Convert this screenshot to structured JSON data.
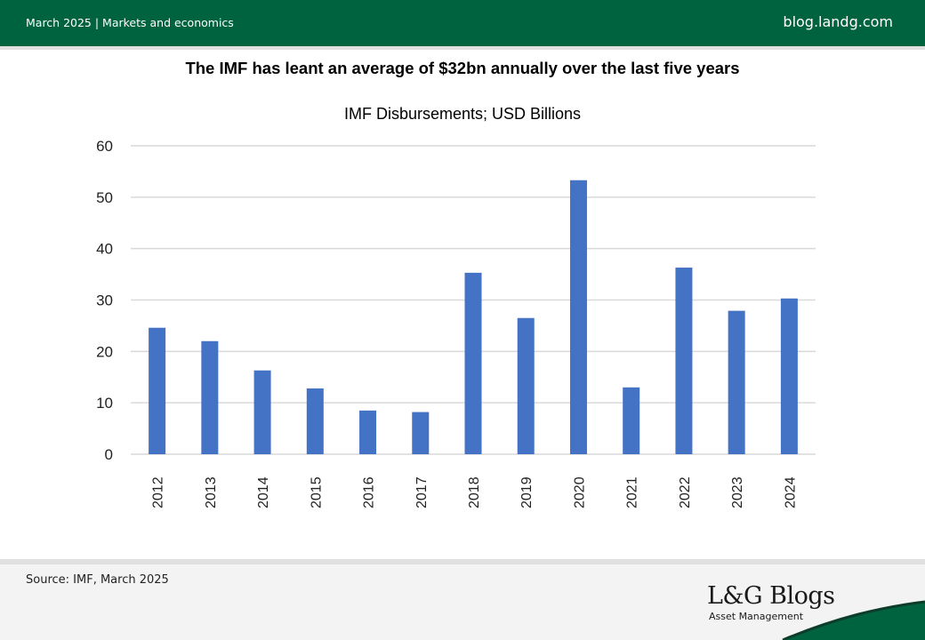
{
  "header": {
    "date_category": "March 2025 | Markets and economics",
    "site": "blog.landg.com"
  },
  "headline": "The IMF has leant an average of $32bn annually over the last five years",
  "footer": {
    "source": "Source: IMF, March 2025",
    "logo_title": "L&G Blogs",
    "logo_subtitle": "Asset Management"
  },
  "colors": {
    "brand_green": "#006340",
    "bar_blue": "#4472c4"
  },
  "chart_data": {
    "type": "bar",
    "title": "IMF Disbursements; USD Billions",
    "xlabel": "",
    "ylabel": "",
    "categories": [
      "2012",
      "2013",
      "2014",
      "2015",
      "2016",
      "2017",
      "2018",
      "2019",
      "2020",
      "2021",
      "2022",
      "2023",
      "2024"
    ],
    "values": [
      24.6,
      22.0,
      16.3,
      12.8,
      8.5,
      8.2,
      35.3,
      26.5,
      53.3,
      13.0,
      36.3,
      27.9,
      30.3
    ],
    "ylim": [
      0,
      60
    ],
    "yticks": [
      0,
      10,
      20,
      30,
      40,
      50,
      60
    ],
    "grid": true,
    "legend": "none"
  }
}
